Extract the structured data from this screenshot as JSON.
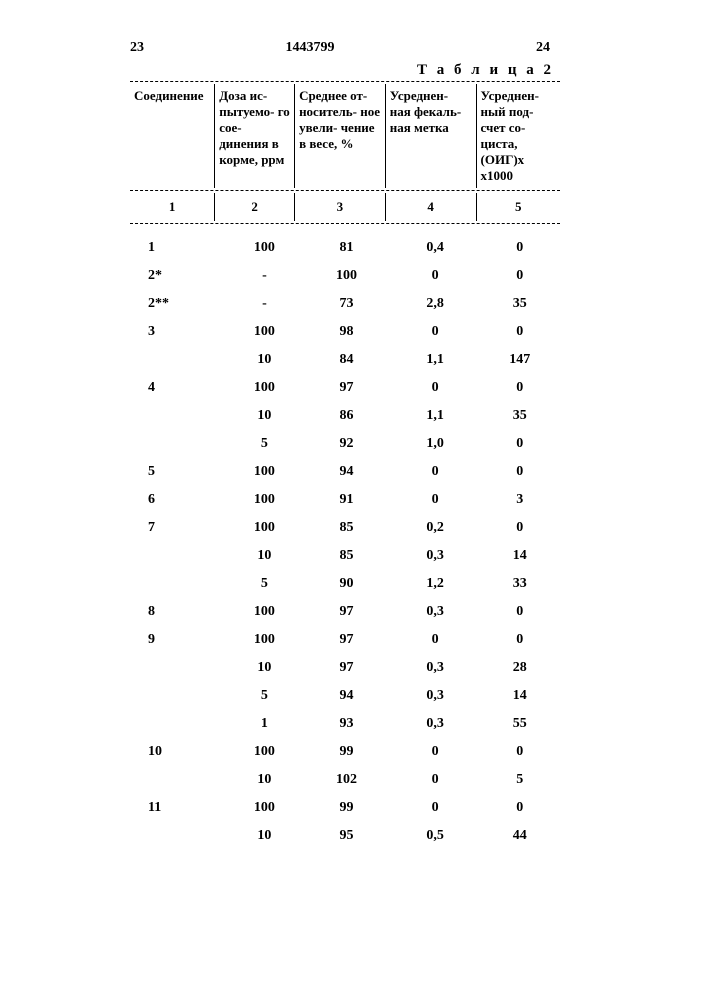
{
  "header": {
    "page_left": "23",
    "doc_number": "1443799",
    "page_right": "24",
    "table_label": "Т а б л и ц а 2"
  },
  "columns": {
    "headers": [
      "Соединение",
      "Доза ис-\nпытуемо-\nго сое-\nдинения\nв корме,\nррм",
      "Среднее от-\nноситель-\nное увели-\nчение в\nвесе, %",
      "Усреднен-\nная фекаль-\nная метка",
      "Усреднен-\nный под-\nсчет со-\nциста,\n(ОИГ)x\nx1000"
    ],
    "nums": [
      "1",
      "2",
      "3",
      "4",
      "5"
    ]
  },
  "rows": [
    {
      "c1": "1",
      "c2": "100",
      "c3": "81",
      "c4": "0,4",
      "c5": "0"
    },
    {
      "c1": "2*",
      "c2": "-",
      "c3": "100",
      "c4": "0",
      "c5": "0",
      "gap": true
    },
    {
      "c1": "2**",
      "c2": "-",
      "c3": "73",
      "c4": "2,8",
      "c5": "35",
      "gap": true
    },
    {
      "c1": "3",
      "c2": "100",
      "c3": "98",
      "c4": "0",
      "c5": "0",
      "gap": true
    },
    {
      "c1": "",
      "c2": "10",
      "c3": "84",
      "c4": "1,1",
      "c5": "147",
      "gap": true
    },
    {
      "c1": "4",
      "c2": "100",
      "c3": "97",
      "c4": "0",
      "c5": "0"
    },
    {
      "c1": "",
      "c2": "10",
      "c3": "86",
      "c4": "1,1",
      "c5": "35"
    },
    {
      "c1": "",
      "c2": "5",
      "c3": "92",
      "c4": "1,0",
      "c5": "0"
    },
    {
      "c1": "5",
      "c2": "100",
      "c3": "94",
      "c4": "0",
      "c5": "0"
    },
    {
      "c1": "6",
      "c2": "100",
      "c3": "91",
      "c4": "0",
      "c5": "3"
    },
    {
      "c1": "7",
      "c2": "100",
      "c3": "85",
      "c4": "0,2",
      "c5": "0"
    },
    {
      "c1": "",
      "c2": "10",
      "c3": "85",
      "c4": "0,3",
      "c5": "14"
    },
    {
      "c1": "",
      "c2": "5",
      "c3": "90",
      "c4": "1,2",
      "c5": "33"
    },
    {
      "c1": "8",
      "c2": "100",
      "c3": "97",
      "c4": "0,3",
      "c5": "0"
    },
    {
      "c1": "9",
      "c2": "100",
      "c3": "97",
      "c4": "0",
      "c5": "0"
    },
    {
      "c1": "",
      "c2": "10",
      "c3": "97",
      "c4": "0,3",
      "c5": "28"
    },
    {
      "c1": "",
      "c2": "5",
      "c3": "94",
      "c4": "0,3",
      "c5": "14"
    },
    {
      "c1": "",
      "c2": "1",
      "c3": "93",
      "c4": "0,3",
      "c5": "55"
    },
    {
      "c1": "10",
      "c2": "100",
      "c3": "99",
      "c4": "0",
      "c5": "0"
    },
    {
      "c1": "",
      "c2": "10",
      "c3": "102",
      "c4": "0",
      "c5": "5"
    },
    {
      "c1": "11",
      "c2": "100",
      "c3": "99",
      "c4": "0",
      "c5": "0"
    },
    {
      "c1": "",
      "c2": "10",
      "c3": "95",
      "c4": "0,5",
      "c5": "44"
    }
  ]
}
